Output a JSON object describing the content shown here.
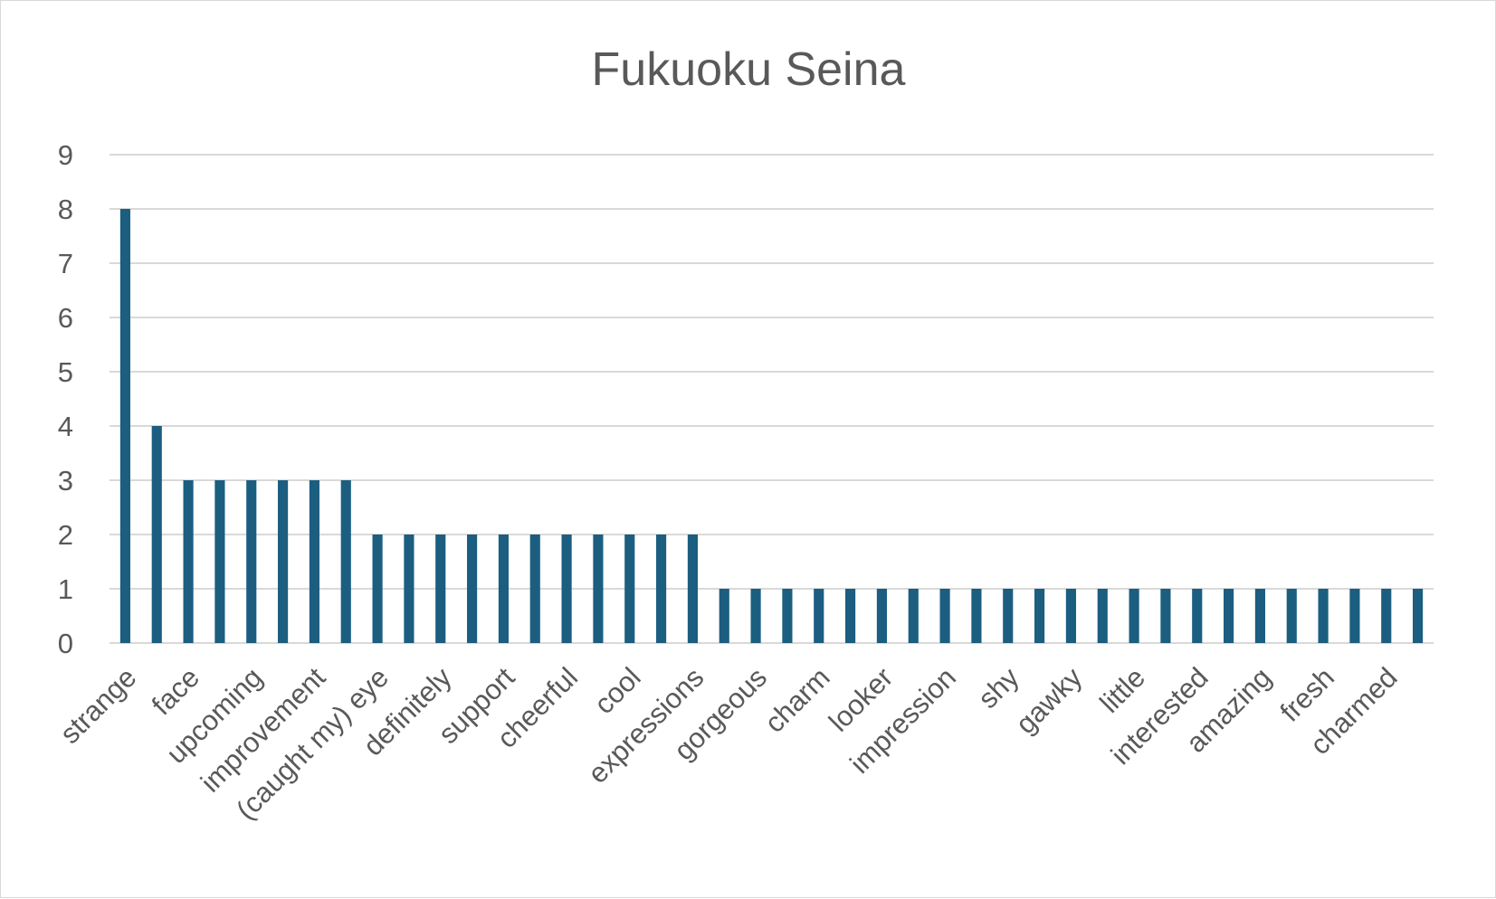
{
  "chart_data": {
    "type": "bar",
    "title": "Fukuoku Seina",
    "xlabel": "",
    "ylabel": "",
    "ylim": [
      0,
      9
    ],
    "yticks": [
      "0",
      "1",
      "2",
      "3",
      "4",
      "5",
      "6",
      "7",
      "8",
      "9"
    ],
    "grid": true,
    "legend": "none",
    "bar_color": "#1b5e80",
    "grid_color": "#d9d9d9",
    "text_color": "#595959",
    "values": [
      8,
      4,
      3,
      3,
      3,
      3,
      3,
      3,
      2,
      2,
      2,
      2,
      2,
      2,
      2,
      2,
      2,
      2,
      2,
      1,
      1,
      1,
      1,
      1,
      1,
      1,
      1,
      1,
      1,
      1,
      1,
      1,
      1,
      1,
      1,
      1,
      1,
      1,
      1,
      1,
      1,
      1
    ],
    "category_labels": [
      {
        "index": 0,
        "text": "strange"
      },
      {
        "index": 2,
        "text": "face"
      },
      {
        "index": 4,
        "text": "upcoming"
      },
      {
        "index": 6,
        "text": "improvement"
      },
      {
        "index": 8,
        "text": "(caught my) eye"
      },
      {
        "index": 10,
        "text": "definitely"
      },
      {
        "index": 12,
        "text": "support"
      },
      {
        "index": 14,
        "text": "cheerful"
      },
      {
        "index": 16,
        "text": "cool"
      },
      {
        "index": 18,
        "text": "expressions"
      },
      {
        "index": 20,
        "text": "gorgeous"
      },
      {
        "index": 22,
        "text": "charm"
      },
      {
        "index": 24,
        "text": "looker"
      },
      {
        "index": 26,
        "text": "impression"
      },
      {
        "index": 28,
        "text": "shy"
      },
      {
        "index": 30,
        "text": "gawky"
      },
      {
        "index": 32,
        "text": "little"
      },
      {
        "index": 34,
        "text": "interested"
      },
      {
        "index": 36,
        "text": "amazing"
      },
      {
        "index": 38,
        "text": "fresh"
      },
      {
        "index": 40,
        "text": "charmed"
      }
    ]
  }
}
